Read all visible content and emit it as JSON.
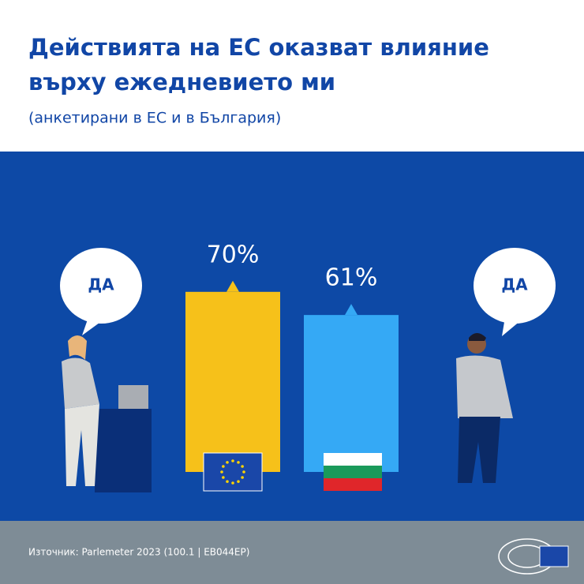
{
  "chart_data": {
    "type": "bar",
    "title": [
      "Действията на ЕС оказват влияние",
      "върху ежедневието ми"
    ],
    "subtitle": "(анкетирани в ЕС и в България)",
    "values": [
      70,
      61
    ],
    "value_labels": [
      "70%",
      "61%"
    ],
    "colors": [
      "#f6c11a",
      "#35a9f5"
    ],
    "annotations": [
      "ДА",
      "ДА"
    ],
    "source": "Източник: Parlemeter 2023 (100.1 | EB044EP)"
  }
}
